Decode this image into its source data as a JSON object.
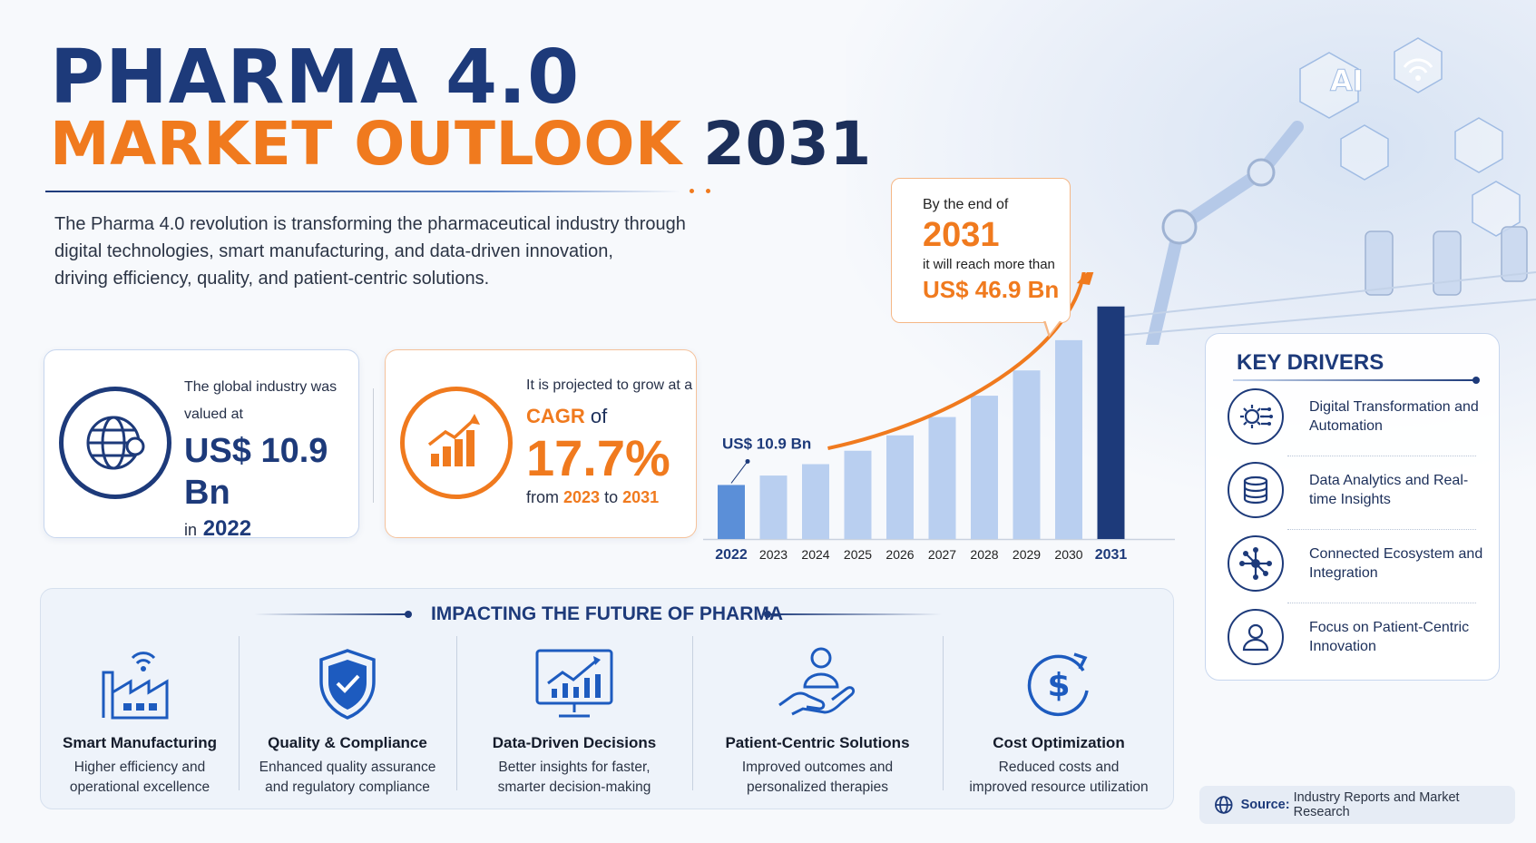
{
  "header": {
    "title_line1": "PHARMA 4.0",
    "title_line2_main": "MARKET OUTLOOK",
    "title_line2_year": "2031"
  },
  "intro": {
    "lines": [
      "The Pharma 4.0 revolution is transforming the pharmaceutical industry through",
      "digital technologies, smart manufacturing, and data-driven innovation,",
      "driving efficiency, quality, and patient-centric solutions."
    ]
  },
  "valuation_card": {
    "line1": "The global industry was",
    "line2": "valued at",
    "value_prefix": "US$",
    "value": "10.9 Bn",
    "year_prefix": "in",
    "year": "2022",
    "icon": "globe-icon"
  },
  "cagr_card": {
    "line1": "It is projected to grow at a",
    "cagr_label": "CAGR",
    "cagr_of": "of",
    "cagr_value": "17.7%",
    "from_word": "from",
    "from_year": "2023",
    "to_word": "to",
    "to_year": "2031",
    "icon": "growth-chart-icon"
  },
  "callout": {
    "line1": "By the end of",
    "year": "2031",
    "line2": "it will reach more than",
    "value": "US$ 46.9 Bn"
  },
  "chart_data": {
    "type": "bar",
    "categories": [
      "2022",
      "2023",
      "2024",
      "2025",
      "2026",
      "2027",
      "2028",
      "2029",
      "2030",
      "2031"
    ],
    "values": [
      10.9,
      12.8,
      15.1,
      17.8,
      20.9,
      24.6,
      28.9,
      34.0,
      40.1,
      46.9
    ],
    "unit": "US$ Bn",
    "data_labels": [
      {
        "category": "2022",
        "text": "US$ 10.9 Bn"
      }
    ],
    "ylim": [
      0,
      50
    ],
    "colors": {
      "base": "#5b8fd8",
      "mid": "#b9cff0",
      "final": "#1d3a7a",
      "arrow": "#f07a1e"
    },
    "grid": false,
    "legend": "none"
  },
  "key_drivers": {
    "title": "KEY DRIVERS",
    "items": [
      {
        "label": "Digital Transformation and Automation",
        "icon": "gear-circuit-icon"
      },
      {
        "label": "Data Analytics and Real-time Insights",
        "icon": "database-icon"
      },
      {
        "label": "Connected Ecosystem and Integration",
        "icon": "network-icon"
      },
      {
        "label": "Focus on Patient-Centric Innovation",
        "icon": "person-icon"
      }
    ]
  },
  "impact": {
    "title": "IMPACTING THE FUTURE OF PHARMA",
    "items": [
      {
        "head": "Smart Manufacturing",
        "desc1": "Higher efficiency and",
        "desc2": "operational excellence",
        "icon": "factory-icon"
      },
      {
        "head": "Quality & Compliance",
        "desc1": "Enhanced quality assurance",
        "desc2": "and regulatory compliance",
        "icon": "shield-check-icon"
      },
      {
        "head": "Data-Driven Decisions",
        "desc1": "Better insights for faster,",
        "desc2": "smarter decision-making",
        "icon": "monitor-chart-icon"
      },
      {
        "head": "Patient-Centric Solutions",
        "desc1": "Improved outcomes and",
        "desc2": "personalized therapies",
        "icon": "hand-person-icon"
      },
      {
        "head": "Cost Optimization",
        "desc1": "Reduced costs and",
        "desc2": "improved resource utilization",
        "icon": "dollar-cycle-icon"
      }
    ]
  },
  "source": {
    "label": "Source:",
    "text": "Industry Reports and Market Research",
    "icon": "globe-icon"
  },
  "hero_badges": [
    {
      "text": "AI",
      "icon": "ai-hex-icon"
    }
  ]
}
